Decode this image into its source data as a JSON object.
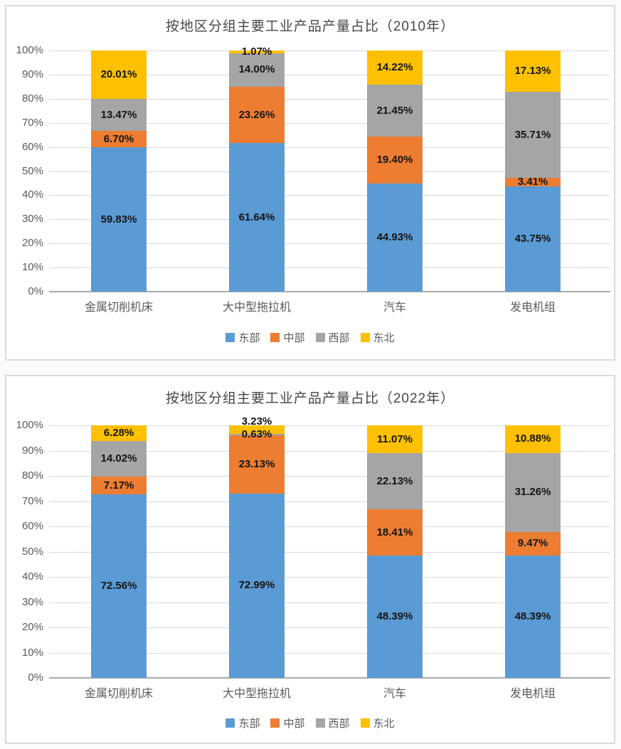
{
  "chart_data": [
    {
      "type": "bar",
      "variant": "stacked-100-percent-column",
      "title": "按地区分组主要工业产品产量占比（2010年）",
      "categories": [
        "金属切削机床",
        "大中型拖拉机",
        "汽车",
        "发电机组"
      ],
      "series": [
        {
          "key": "east",
          "name": "东部",
          "color": "#5B9BD5",
          "values": [
            59.83,
            61.64,
            44.93,
            43.75
          ]
        },
        {
          "key": "central",
          "name": "中部",
          "color": "#ED7D31",
          "values": [
            6.7,
            23.26,
            19.4,
            3.41
          ]
        },
        {
          "key": "west",
          "name": "西部",
          "color": "#A5A5A5",
          "values": [
            13.47,
            14.0,
            21.45,
            35.71
          ]
        },
        {
          "key": "northeast",
          "name": "东北",
          "color": "#FFC000",
          "values": [
            20.01,
            1.07,
            14.22,
            17.13
          ]
        }
      ],
      "y_ticks": [
        "0%",
        "10%",
        "20%",
        "30%",
        "40%",
        "50%",
        "60%",
        "70%",
        "80%",
        "90%",
        "100%"
      ],
      "ylim": [
        0,
        100
      ],
      "grid": true,
      "legend_position": "bottom",
      "data_label_format": "0.00%"
    },
    {
      "type": "bar",
      "variant": "stacked-100-percent-column",
      "title": "按地区分组主要工业产品产量占比（2022年）",
      "categories": [
        "金属切削机床",
        "大中型拖拉机",
        "汽车",
        "发电机组"
      ],
      "series": [
        {
          "key": "east",
          "name": "东部",
          "color": "#5B9BD5",
          "values": [
            72.56,
            72.99,
            48.39,
            48.39
          ]
        },
        {
          "key": "central",
          "name": "中部",
          "color": "#ED7D31",
          "values": [
            7.17,
            23.13,
            18.41,
            9.47
          ]
        },
        {
          "key": "west",
          "name": "西部",
          "color": "#A5A5A5",
          "values": [
            14.02,
            0.63,
            22.13,
            31.26
          ]
        },
        {
          "key": "northeast",
          "name": "东北",
          "color": "#FFC000",
          "values": [
            6.28,
            3.23,
            11.07,
            10.88
          ]
        }
      ],
      "y_ticks": [
        "0%",
        "10%",
        "20%",
        "30%",
        "40%",
        "50%",
        "60%",
        "70%",
        "80%",
        "90%",
        "100%"
      ],
      "ylim": [
        0,
        100
      ],
      "grid": true,
      "legend_position": "bottom",
      "data_label_format": "0.00%"
    }
  ]
}
